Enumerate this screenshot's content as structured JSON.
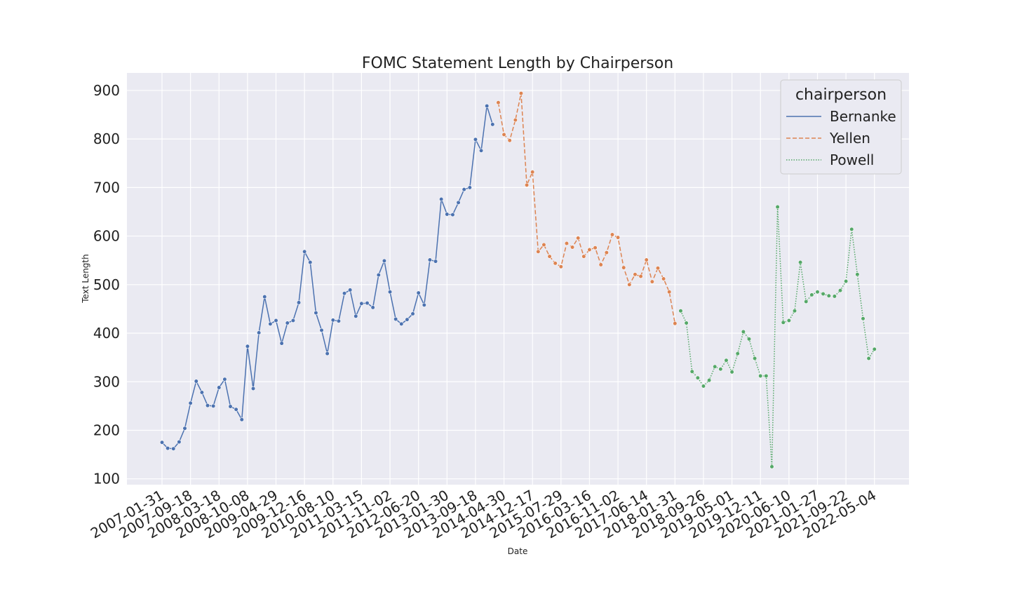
{
  "chart_data": {
    "type": "line",
    "title": "FOMC Statement Length by Chairperson",
    "xlabel": "Date",
    "ylabel": "Text Length",
    "ylim": [
      88,
      936
    ],
    "yticks": [
      100,
      200,
      300,
      400,
      500,
      600,
      700,
      800,
      900
    ],
    "xtick_labels": [
      "2007-01-31",
      "2007-09-18",
      "2008-03-18",
      "2008-10-08",
      "2009-04-29",
      "2009-12-16",
      "2010-08-10",
      "2011-03-15",
      "2011-11-02",
      "2012-06-20",
      "2013-01-30",
      "2013-09-18",
      "2014-04-30",
      "2014-12-17",
      "2015-07-29",
      "2016-03-16",
      "2016-11-02",
      "2017-06-14",
      "2018-01-31",
      "2018-09-26",
      "2019-05-01",
      "2019-12-11",
      "2020-06-10",
      "2021-01-27",
      "2021-09-22",
      "2022-05-04"
    ],
    "tick_every": 5,
    "grid": true,
    "legend": {
      "title": "chairperson",
      "position": "top-right"
    },
    "colors": {
      "background": "#eaeaf2",
      "grid": "#ffffff"
    },
    "series": [
      {
        "name": "Bernanke",
        "color": "#4c72b0",
        "dash": "solid",
        "values": [
          175,
          163,
          162,
          176,
          204,
          256,
          301,
          278,
          251,
          250,
          288,
          305,
          249,
          243,
          222,
          373,
          286,
          401,
          475,
          419,
          426,
          379,
          421,
          426,
          463,
          568,
          546,
          442,
          406,
          358,
          427,
          425,
          482,
          489,
          435,
          461,
          462,
          453,
          520,
          549,
          485,
          429,
          419,
          428,
          440,
          483,
          458,
          551,
          548,
          676,
          645,
          644,
          669,
          696,
          700,
          799,
          776,
          868,
          830
        ]
      },
      {
        "name": "Yellen",
        "color": "#dd8452",
        "dash": "dashed",
        "values": [
          875,
          809,
          797,
          839,
          894,
          705,
          732,
          568,
          582,
          558,
          544,
          537,
          585,
          577,
          596,
          558,
          572,
          576,
          541,
          566,
          603,
          597,
          535,
          500,
          521,
          517,
          551,
          506,
          534,
          512,
          485,
          420
        ]
      },
      {
        "name": "Powell",
        "color": "#55a868",
        "dash": "dotted",
        "values": [
          446,
          421,
          321,
          308,
          291,
          303,
          331,
          326,
          344,
          320,
          358,
          403,
          388,
          348,
          312,
          312,
          125,
          660,
          422,
          426,
          446,
          546,
          465,
          479,
          485,
          481,
          477,
          476,
          488,
          507,
          614,
          521,
          430,
          348,
          367
        ]
      }
    ]
  }
}
